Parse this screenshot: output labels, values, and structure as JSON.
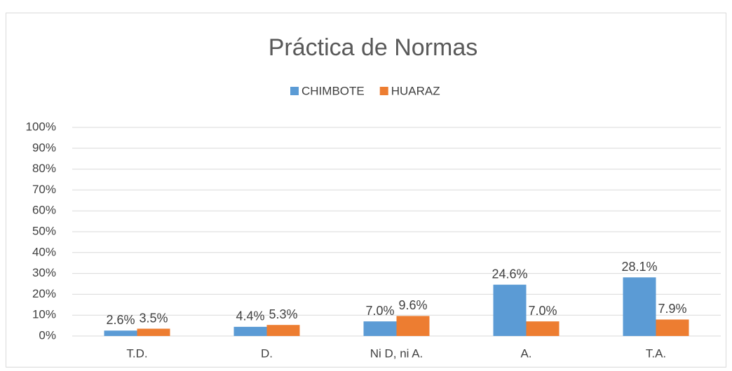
{
  "chart_data": {
    "type": "bar",
    "title": "Práctica de Normas",
    "categories": [
      "T.D.",
      "D.",
      "Ni D, ni A.",
      "A.",
      "T.A."
    ],
    "series": [
      {
        "name": "CHIMBOTE",
        "color": "#5b9bd5",
        "values": [
          2.6,
          4.4,
          7.0,
          24.6,
          28.1
        ],
        "value_labels": [
          "2.6%",
          "4.4%",
          "7.0%",
          "24.6%",
          "28.1%"
        ]
      },
      {
        "name": "HUARAZ",
        "color": "#ed7d31",
        "values": [
          3.5,
          5.3,
          9.6,
          7.0,
          7.9
        ],
        "value_labels": [
          "3.5%",
          "5.3%",
          "9.6%",
          "7.0%",
          "7.9%"
        ]
      }
    ],
    "ylim": [
      0,
      100
    ],
    "yticks": [
      {
        "value": 0,
        "label": "0%"
      },
      {
        "value": 10,
        "label": "10%"
      },
      {
        "value": 20,
        "label": "20%"
      },
      {
        "value": 30,
        "label": "30%"
      },
      {
        "value": 40,
        "label": "40%"
      },
      {
        "value": 50,
        "label": "50%"
      },
      {
        "value": 60,
        "label": "60%"
      },
      {
        "value": 70,
        "label": "70%"
      },
      {
        "value": 80,
        "label": "80%"
      },
      {
        "value": 90,
        "label": "90%"
      },
      {
        "value": 100,
        "label": "100%"
      }
    ],
    "grid": true,
    "legend": "top"
  }
}
